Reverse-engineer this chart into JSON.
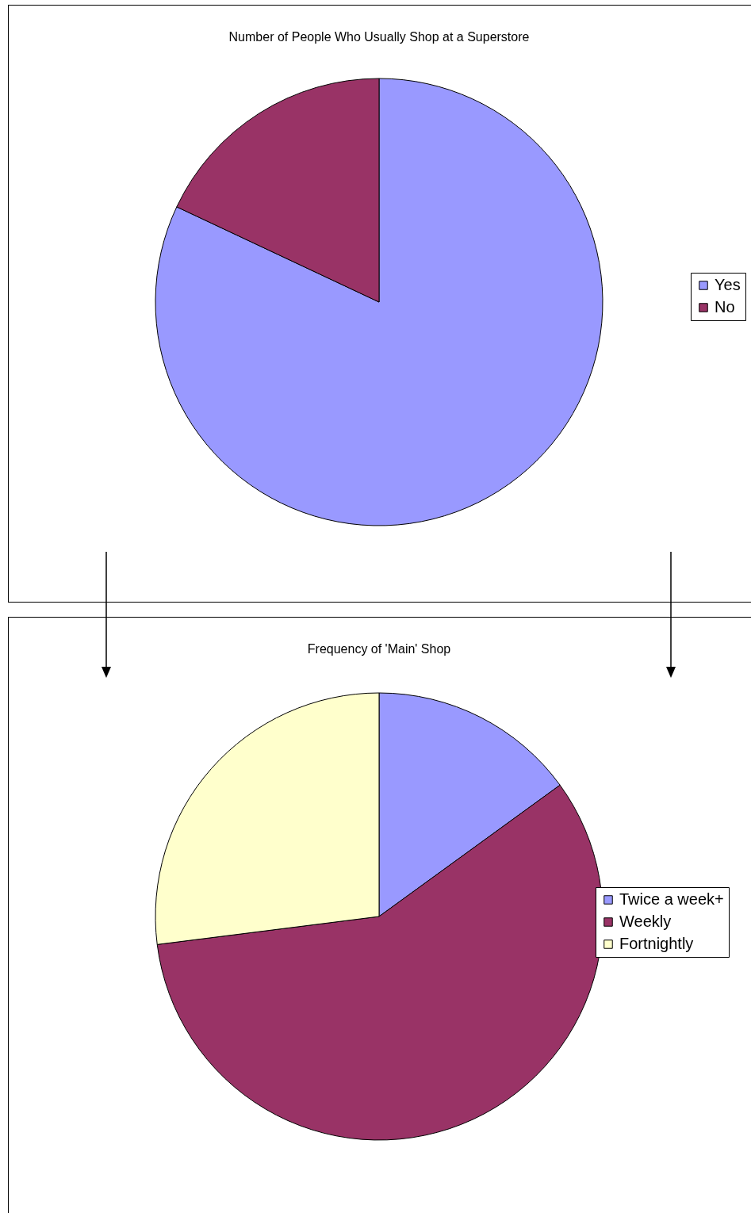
{
  "chart_data": [
    {
      "type": "pie",
      "title": "Number of People Who Usually Shop at a Superstore",
      "categories": [
        "Yes",
        "No"
      ],
      "values": [
        82,
        18
      ],
      "colors": [
        "#9999ff",
        "#993366"
      ],
      "legend": "right"
    },
    {
      "type": "pie",
      "title": "Frequency of 'Main' Shop",
      "categories": [
        "Twice a week+",
        "Weekly",
        "Fortnightly"
      ],
      "values": [
        15,
        58,
        27
      ],
      "colors": [
        "#9999ff",
        "#993366",
        "#ffffcc"
      ],
      "legend": "right"
    }
  ]
}
